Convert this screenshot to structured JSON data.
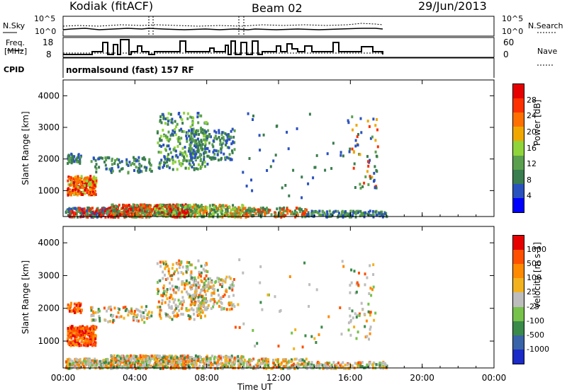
{
  "header": {
    "station": "Kodiak (fitACF)",
    "beam": "Beam 02",
    "date": "29/Jun/2013"
  },
  "status_panels": {
    "nsky_label": "N.Sky",
    "nsearch_label": "N.Search",
    "count_ticks_top": "10^5",
    "count_ticks_bottom": "10^0",
    "freq_label": "Freq.",
    "freq_unit": "[MHz]",
    "freq_ticks": [
      "18",
      "8"
    ],
    "nave_ticks": [
      "60",
      "0"
    ],
    "nave_label": "Nave",
    "cpid_label": "CPID",
    "cpid_text": "normalsound (fast) 157 RF"
  },
  "colors": {
    "power_scale": [
      "#0000ff",
      "#2a52be",
      "#3a7d4f",
      "#5aa04e",
      "#8fd43a",
      "#f0a800",
      "#ff7000",
      "#ff3000",
      "#e60000"
    ],
    "velocity_scale": [
      "#1a2bc8",
      "#3a64a8",
      "#3a8a4a",
      "#76c24a",
      "#bdbdbd",
      "#f2b21e",
      "#ff8a00",
      "#ff5000",
      "#e60000"
    ]
  },
  "chart_data": [
    {
      "type": "heatmap",
      "name": "power",
      "xlabel": "Time UT",
      "ylabel": "Slant Range [km]",
      "colorbar_label": "Power [dB]",
      "colorbar_ticks": [
        "28",
        "24",
        "20",
        "16",
        "12",
        "8",
        "4"
      ],
      "x_ticks": [
        "00:00",
        "04:00",
        "08:00",
        "12:00",
        "16:00",
        "20:00",
        "00:00"
      ],
      "xlim_hours": [
        0,
        24
      ],
      "y_ticks": [
        "4000",
        "3000",
        "2000",
        "1000"
      ],
      "ylim_km": [
        180,
        4500
      ],
      "clim_db": [
        0,
        30
      ]
    },
    {
      "type": "heatmap",
      "name": "velocity",
      "xlabel": "Time UT",
      "ylabel": "Slant Range [km]",
      "colorbar_label": "Velocity [m s-1]",
      "colorbar_ticks": [
        "1000",
        "500",
        "100",
        "25",
        "-25",
        "-100",
        "-500",
        "-1000"
      ],
      "x_ticks": [
        "00:00",
        "04:00",
        "08:00",
        "12:00",
        "16:00",
        "20:00",
        "00:00"
      ],
      "xlim_hours": [
        0,
        24
      ],
      "y_ticks": [
        "4000",
        "3000",
        "2000",
        "1000"
      ],
      "ylim_km": [
        180,
        4500
      ],
      "clim_ms": [
        -1000,
        1000
      ]
    }
  ]
}
